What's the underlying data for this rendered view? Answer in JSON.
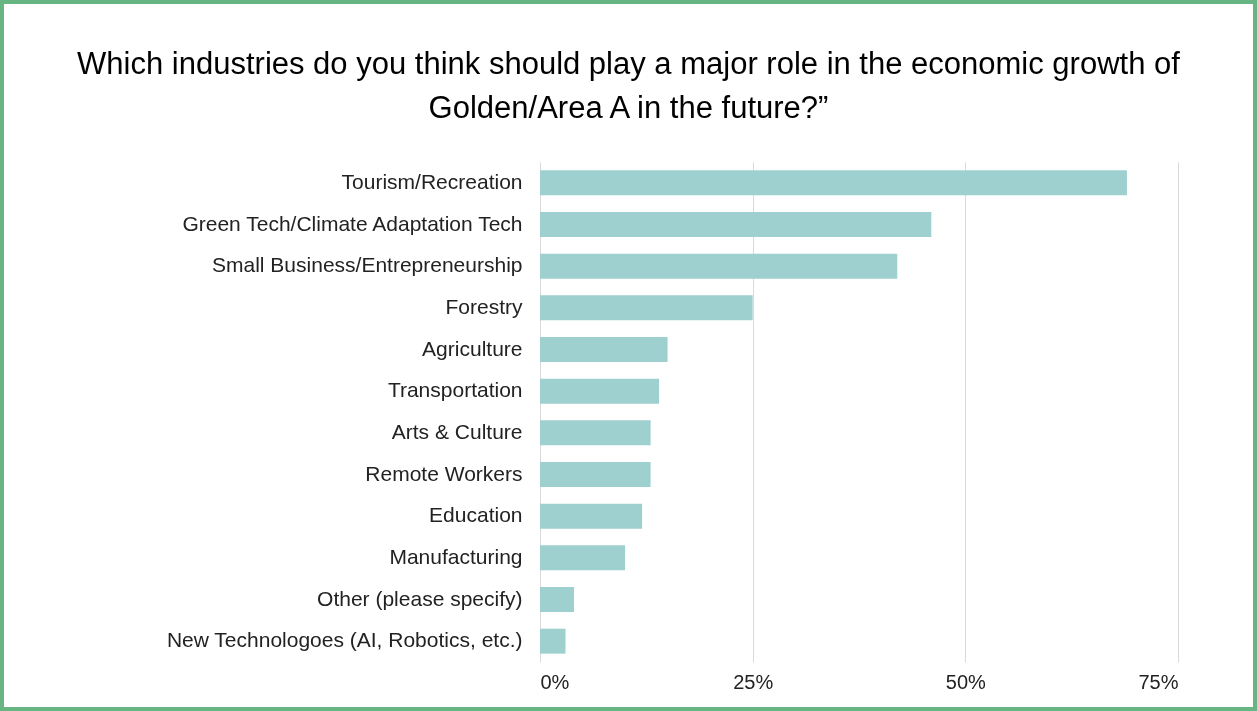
{
  "chart_data": {
    "type": "bar",
    "orientation": "horizontal",
    "title": "Which industries do you think should play a major role in the economic growth of Golden/Area A in the future?”",
    "categories": [
      "Tourism/Recreation",
      "Green Tech/Climate Adaptation Tech",
      "Small Business/Entrepreneurship",
      "Forestry",
      "Agriculture",
      "Transportation",
      "Arts & Culture",
      "Remote Workers",
      "Education",
      "Manufacturing",
      "Other (please specify)",
      "New Technologoes (AI, Robotics, etc.)"
    ],
    "values": [
      69,
      46,
      42,
      25,
      15,
      14,
      13,
      13,
      12,
      10,
      4,
      3
    ],
    "color": "#9dd0cf",
    "xlim": [
      0,
      75
    ],
    "xticks": [
      {
        "value": 0,
        "label": "0%"
      },
      {
        "value": 25,
        "label": "25%"
      },
      {
        "value": 50,
        "label": "50%"
      },
      {
        "value": 75,
        "label": "75%"
      }
    ],
    "grid": "x"
  }
}
